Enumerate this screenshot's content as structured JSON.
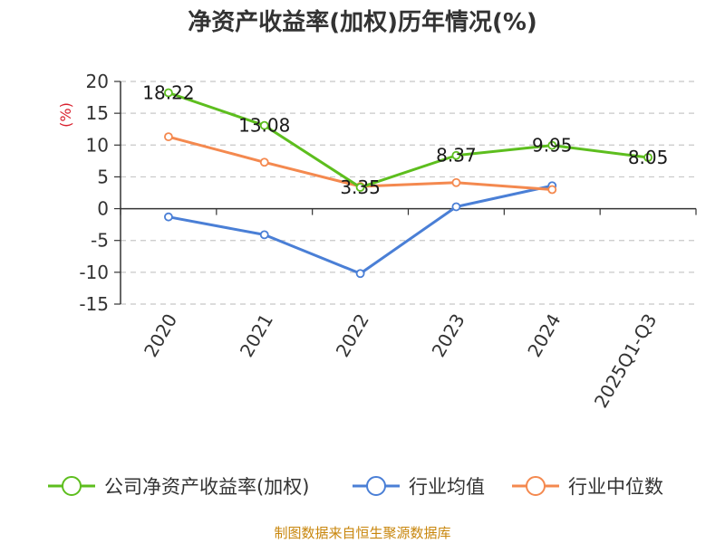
{
  "chart_data": {
    "type": "line",
    "title": "净资产收益率(加权)历年情况(%)",
    "ylabel": "(%)",
    "xlabel": "",
    "categories": [
      "2020",
      "2021",
      "2022",
      "2023",
      "2024",
      "2025Q1-Q3"
    ],
    "ylim": [
      -15,
      20
    ],
    "yticks": [
      20,
      15,
      10,
      5,
      0,
      -5,
      -10,
      -15
    ],
    "grid": true,
    "legend_position": "bottom",
    "series": [
      {
        "name": "公司净资产收益率(加权)",
        "color": "#5dbe1e",
        "values": [
          18.22,
          13.08,
          3.35,
          8.37,
          9.95,
          8.05
        ],
        "labels": [
          "18.22",
          "13.08",
          "3.35",
          "8.37",
          "9.95",
          "8.05"
        ]
      },
      {
        "name": "行业均值",
        "color": "#4a7fd6",
        "values": [
          -1.3,
          -4.1,
          -10.2,
          0.3,
          3.6,
          null
        ]
      },
      {
        "name": "行业中位数",
        "color": "#f4894f",
        "values": [
          11.3,
          7.3,
          3.5,
          4.1,
          3.0,
          null
        ]
      }
    ]
  },
  "source": "制图数据来自恒生聚源数据库",
  "colors": {
    "axis": "#333333",
    "grid": "#c8c8c8",
    "ylabel": "#d9202e",
    "source": "#c8860c"
  }
}
